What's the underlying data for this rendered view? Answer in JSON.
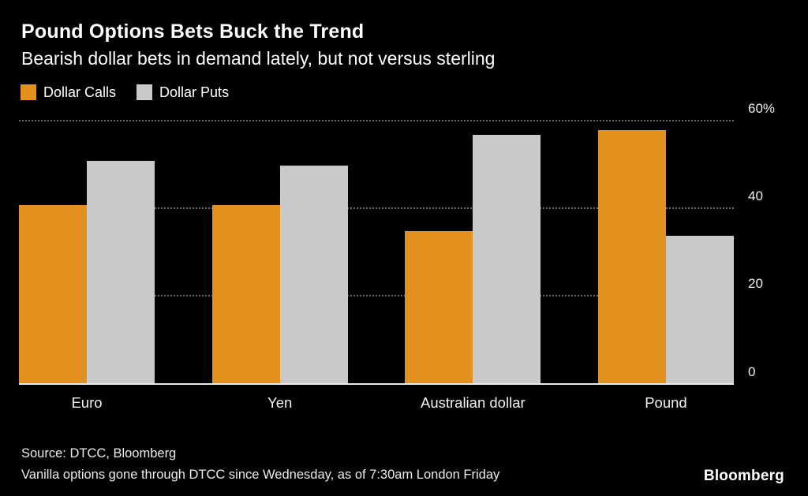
{
  "header": {
    "title": "Pound Options Bets Buck the Trend",
    "subtitle": "Bearish dollar bets in demand lately, but not versus sterling"
  },
  "legend": [
    {
      "label": "Dollar Calls",
      "color": "#E2911E"
    },
    {
      "label": "Dollar Puts",
      "color": "#C9C9C9"
    }
  ],
  "chart_data": {
    "type": "bar",
    "title": "Pound Options Bets Buck the Trend",
    "subtitle": "Bearish dollar bets in demand lately, but not versus sterling",
    "categories": [
      "Euro",
      "Yen",
      "Australian dollar",
      "Pound"
    ],
    "series": [
      {
        "name": "Dollar Calls",
        "color": "#E2911E",
        "values": [
          41,
          41,
          35,
          58
        ]
      },
      {
        "name": "Dollar Puts",
        "color": "#C9C9C9",
        "values": [
          51,
          50,
          57,
          34
        ]
      }
    ],
    "xlabel": "",
    "ylabel": "",
    "ylim": [
      0,
      62
    ],
    "y_ticks": [
      0,
      20,
      40,
      60
    ],
    "y_tick_labels": [
      "0",
      "20",
      "40",
      "60%"
    ],
    "grid": "dotted-horizontal",
    "axis_side": "right",
    "legend_position": "top-left",
    "background": "#000000"
  },
  "footer": {
    "source": "Source: DTCC, Bloomberg",
    "note": "Vanilla options gone through DTCC since Wednesday, as of 7:30am London Friday",
    "brand": "Bloomberg"
  }
}
